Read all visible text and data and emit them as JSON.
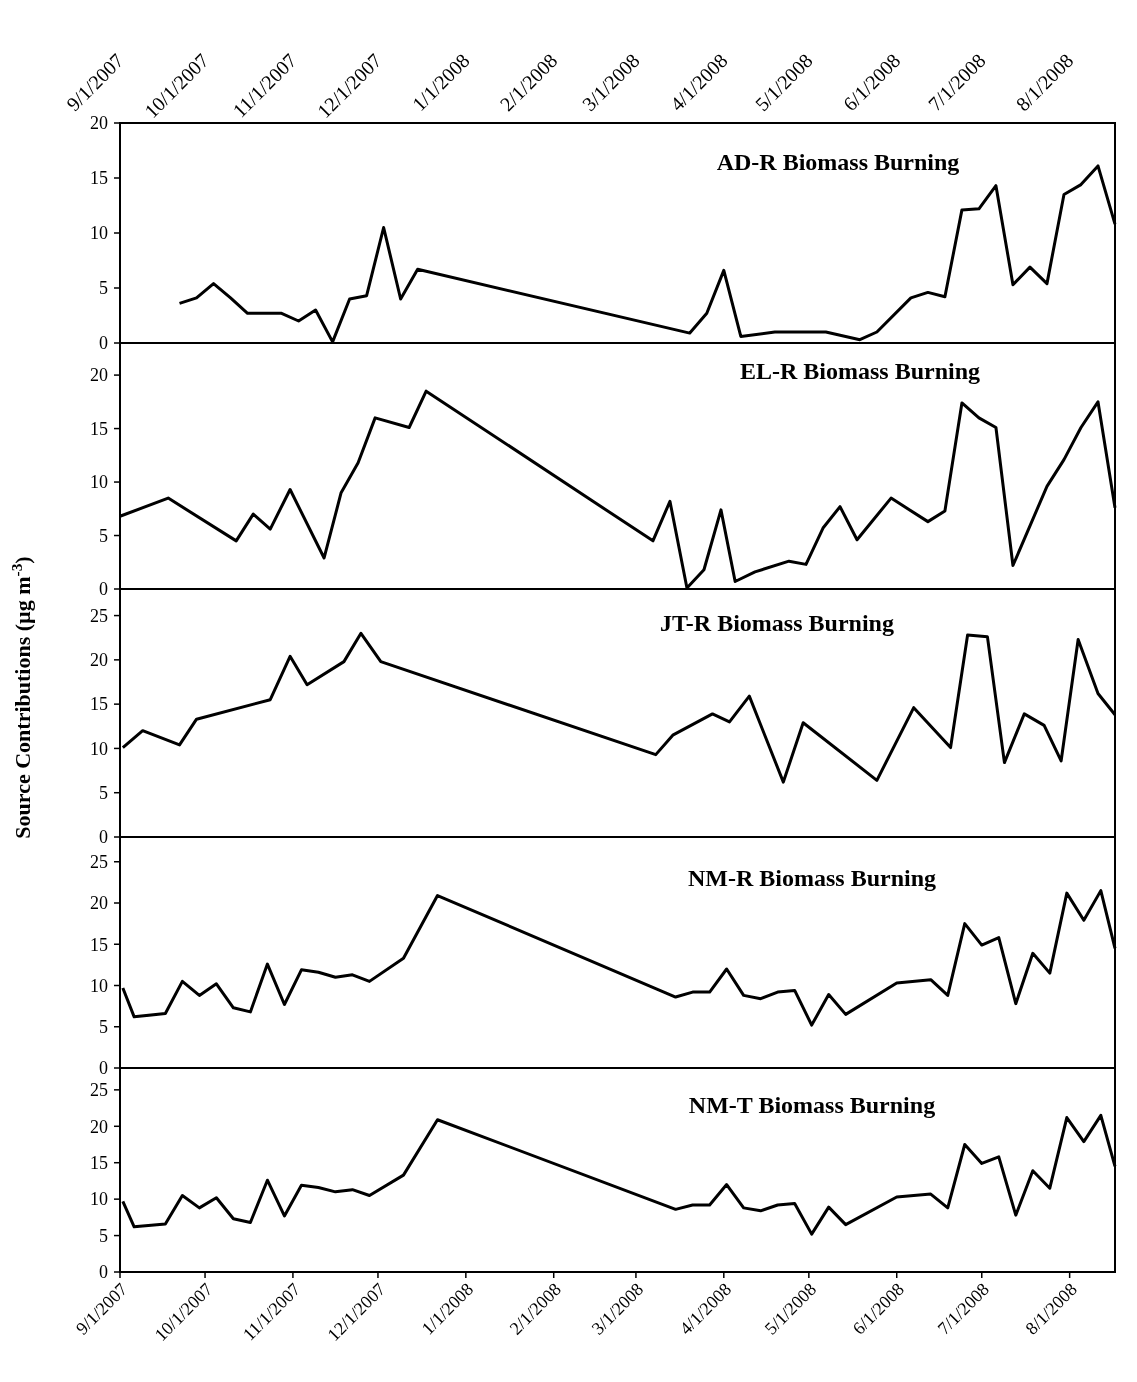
{
  "chart_data": [
    {
      "type": "line",
      "title": "AD-R Biomass Burning",
      "xlim": [
        "2007-09-01",
        "2008-08-17"
      ],
      "x2lim": [
        "2007-09-01",
        "2008-08-17"
      ],
      "x2ticks": [
        {
          "value": "2007-09-01",
          "label": "9/1/2007"
        },
        {
          "value": "2007-10-01",
          "label": "10/1/2007"
        },
        {
          "value": "2007-11-01",
          "label": "11/1/2007"
        },
        {
          "value": "2007-12-01",
          "label": "12/1/2007"
        },
        {
          "value": "2008-01-01",
          "label": "1/1/2008"
        },
        {
          "value": "2008-02-01",
          "label": "2/1/2008"
        },
        {
          "value": "2008-03-01",
          "label": "3/1/2008"
        },
        {
          "value": "2008-04-01",
          "label": "4/1/2008"
        },
        {
          "value": "2008-05-01",
          "label": "5/1/2008"
        },
        {
          "value": "2008-06-01",
          "label": "6/1/2008"
        },
        {
          "value": "2008-07-01",
          "label": "7/1/2008"
        },
        {
          "value": "2008-08-01",
          "label": "8/1/2008"
        }
      ],
      "ylim": [
        0,
        20
      ],
      "yticks": [
        0,
        5,
        10,
        15,
        20
      ],
      "x": [
        "2007-09-22",
        "2007-09-28",
        "2007-10-04",
        "2007-10-10",
        "2007-10-16",
        "2007-10-28",
        "2007-11-03",
        "2007-11-09",
        "2007-11-15",
        "2007-11-21",
        "2007-11-27",
        "2007-12-03",
        "2007-12-09",
        "2007-12-15",
        "2008-03-20",
        "2008-03-26",
        "2008-04-01",
        "2008-04-07",
        "2008-04-19",
        "2008-05-07",
        "2008-05-19",
        "2008-05-25",
        "2008-06-06",
        "2008-06-12",
        "2008-06-18",
        "2008-06-24",
        "2008-06-30",
        "2008-07-06",
        "2008-07-12",
        "2008-07-18",
        "2008-07-24",
        "2008-07-30",
        "2008-08-05",
        "2008-08-11",
        "2008-08-17"
      ],
      "series": [
        {
          "color": "#000000",
          "values": [
            3.6,
            4.1,
            5.4,
            4.1,
            2.7,
            2.7,
            2.0,
            3.0,
            0.1,
            4.0,
            4.3,
            10.5,
            4.0,
            6.7,
            0.9,
            2.7,
            6.6,
            0.6,
            1.0,
            1.0,
            0.3,
            1.0,
            4.1,
            4.6,
            4.2,
            12.1,
            12.2,
            14.3,
            5.3,
            6.9,
            5.4,
            13.5,
            14.4,
            16.1,
            10.8
          ]
        }
      ]
    },
    {
      "type": "line",
      "title": "EL-R Biomass Burning",
      "xlim": [
        "2007-09-01",
        "2008-08-17"
      ],
      "ylim": [
        0,
        23
      ],
      "yticks": [
        0,
        5,
        10,
        15,
        20
      ],
      "tick_labels": "y",
      "x": [
        "2007-09-01",
        "2007-09-18",
        "2007-10-12",
        "2007-10-18",
        "2007-10-24",
        "2007-10-31",
        "2007-11-12",
        "2007-11-18",
        "2007-11-24",
        "2007-11-30",
        "2007-12-12",
        "2007-12-18",
        "2008-03-07",
        "2008-03-13",
        "2008-03-19",
        "2008-03-25",
        "2008-03-31",
        "2008-04-05",
        "2008-04-12",
        "2008-04-24",
        "2008-04-30",
        "2008-05-06",
        "2008-05-12",
        "2008-05-18",
        "2008-05-30",
        "2008-06-12",
        "2008-06-18",
        "2008-06-24",
        "2008-06-30",
        "2008-07-06",
        "2008-07-12",
        "2008-07-24",
        "2008-07-30",
        "2008-08-05",
        "2008-08-11",
        "2008-08-17"
      ],
      "series": [
        {
          "color": "#000000",
          "values": [
            6.8,
            8.5,
            4.5,
            7.0,
            5.6,
            9.3,
            2.9,
            9.0,
            11.8,
            16.0,
            15.1,
            18.5,
            4.5,
            8.2,
            0.1,
            1.8,
            7.4,
            0.7,
            1.6,
            2.6,
            2.3,
            5.7,
            7.7,
            4.6,
            8.5,
            6.3,
            7.3,
            17.4,
            16.0,
            15.1,
            2.2,
            9.6,
            12.1,
            15.1,
            17.5,
            7.6
          ]
        }
      ]
    },
    {
      "type": "line",
      "title": "JT-R Biomass Burning",
      "ylabel": "Source Contributions (µg m$^{-3}$)",
      "xlim": [
        "2007-09-01",
        "2008-08-17"
      ],
      "ylim": [
        0,
        28
      ],
      "yticks": [
        0,
        5,
        10,
        15,
        20,
        25
      ],
      "tick_labels": "y",
      "x": [
        "2007-09-02",
        "2007-09-09",
        "2007-09-22",
        "2007-09-28",
        "2007-10-24",
        "2007-10-31",
        "2007-11-06",
        "2007-11-19",
        "2007-11-25",
        "2007-12-02",
        "2008-03-08",
        "2008-03-14",
        "2008-03-28",
        "2008-04-03",
        "2008-04-10",
        "2008-04-22",
        "2008-04-29",
        "2008-05-25",
        "2008-06-07",
        "2008-06-20",
        "2008-06-26",
        "2008-07-03",
        "2008-07-09",
        "2008-07-16",
        "2008-07-23",
        "2008-07-29",
        "2008-08-04",
        "2008-08-11",
        "2008-08-17"
      ],
      "series": [
        {
          "color": "#000000",
          "values": [
            10.1,
            12.0,
            10.4,
            13.3,
            15.5,
            20.4,
            17.2,
            19.8,
            23.0,
            19.8,
            9.3,
            11.5,
            13.9,
            13.0,
            15.9,
            6.2,
            12.9,
            6.4,
            14.6,
            10.1,
            22.8,
            22.6,
            8.4,
            13.9,
            12.6,
            8.6,
            22.3,
            16.2,
            13.8
          ]
        }
      ]
    },
    {
      "type": "line",
      "title": "NM-R Biomass Burning",
      "xlim": [
        "2007-09-01",
        "2008-08-17"
      ],
      "ylim": [
        0,
        28
      ],
      "yticks": [
        0,
        5,
        10,
        15,
        20,
        25
      ],
      "tick_labels": "y",
      "x": [
        "2007-09-02",
        "2007-09-06",
        "2007-09-17",
        "2007-09-23",
        "2007-09-29",
        "2007-10-05",
        "2007-10-11",
        "2007-10-17",
        "2007-10-23",
        "2007-10-29",
        "2007-11-04",
        "2007-11-10",
        "2007-11-16",
        "2007-11-22",
        "2007-11-28",
        "2007-12-10",
        "2007-12-22",
        "2008-03-15",
        "2008-03-21",
        "2008-03-27",
        "2008-04-02",
        "2008-04-08",
        "2008-04-14",
        "2008-04-20",
        "2008-04-26",
        "2008-05-02",
        "2008-05-08",
        "2008-05-14",
        "2008-06-01",
        "2008-06-13",
        "2008-06-19",
        "2008-06-25",
        "2008-07-01",
        "2008-07-07",
        "2008-07-13",
        "2008-07-19",
        "2008-07-25",
        "2008-07-31",
        "2008-08-06",
        "2008-08-12",
        "2008-08-17"
      ],
      "series": [
        {
          "color": "#000000",
          "values": [
            9.7,
            6.2,
            6.6,
            10.5,
            8.8,
            10.2,
            7.3,
            6.8,
            12.6,
            7.7,
            11.9,
            11.6,
            11.0,
            11.3,
            10.5,
            13.3,
            20.9,
            8.6,
            9.2,
            9.2,
            12.0,
            8.8,
            8.4,
            9.2,
            9.4,
            5.2,
            8.9,
            6.5,
            10.3,
            10.7,
            8.8,
            17.5,
            14.9,
            15.8,
            7.8,
            13.9,
            11.5,
            21.2,
            17.9,
            21.5,
            14.5
          ]
        }
      ]
    },
    {
      "type": "line",
      "title": "NM-T Biomass Burning",
      "xlim": [
        "2007-09-01",
        "2008-08-17"
      ],
      "ylim": [
        0,
        28
      ],
      "yticks": [
        0,
        5,
        10,
        15,
        20,
        25
      ],
      "xticks": [
        {
          "value": "2007-09-01",
          "label": "9/1/2007"
        },
        {
          "value": "2007-10-01",
          "label": "10/1/2007"
        },
        {
          "value": "2007-11-01",
          "label": "11/1/2007"
        },
        {
          "value": "2007-12-01",
          "label": "12/1/2007"
        },
        {
          "value": "2008-01-01",
          "label": "1/1/2008"
        },
        {
          "value": "2008-02-01",
          "label": "2/1/2008"
        },
        {
          "value": "2008-03-01",
          "label": "3/1/2008"
        },
        {
          "value": "2008-04-01",
          "label": "4/1/2008"
        },
        {
          "value": "2008-05-01",
          "label": "5/1/2008"
        },
        {
          "value": "2008-06-01",
          "label": "6/1/2008"
        },
        {
          "value": "2008-07-01",
          "label": "7/1/2008"
        },
        {
          "value": "2008-08-01",
          "label": "8/1/2008"
        }
      ],
      "x": [
        "2007-09-02",
        "2007-09-06",
        "2007-09-17",
        "2007-09-23",
        "2007-09-29",
        "2007-10-05",
        "2007-10-11",
        "2007-10-17",
        "2007-10-23",
        "2007-10-29",
        "2007-11-04",
        "2007-11-10",
        "2007-11-16",
        "2007-11-22",
        "2007-11-28",
        "2007-12-10",
        "2007-12-22",
        "2008-03-15",
        "2008-03-21",
        "2008-03-27",
        "2008-04-02",
        "2008-04-08",
        "2008-04-14",
        "2008-04-20",
        "2008-04-26",
        "2008-05-02",
        "2008-05-08",
        "2008-05-14",
        "2008-06-01",
        "2008-06-13",
        "2008-06-19",
        "2008-06-25",
        "2008-07-01",
        "2008-07-07",
        "2008-07-13",
        "2008-07-19",
        "2008-07-25",
        "2008-07-31",
        "2008-08-06",
        "2008-08-12",
        "2008-08-17"
      ],
      "series": [
        {
          "color": "#000000",
          "values": [
            9.7,
            6.2,
            6.6,
            10.5,
            8.8,
            10.2,
            7.3,
            6.8,
            12.6,
            7.7,
            11.9,
            11.6,
            11.0,
            11.3,
            10.5,
            13.3,
            20.9,
            8.6,
            9.2,
            9.2,
            12.0,
            8.8,
            8.4,
            9.2,
            9.4,
            5.2,
            8.9,
            6.5,
            10.3,
            10.7,
            8.8,
            17.5,
            14.9,
            15.8,
            7.8,
            13.9,
            11.5,
            21.2,
            17.9,
            21.5,
            14.5
          ]
        }
      ]
    }
  ]
}
